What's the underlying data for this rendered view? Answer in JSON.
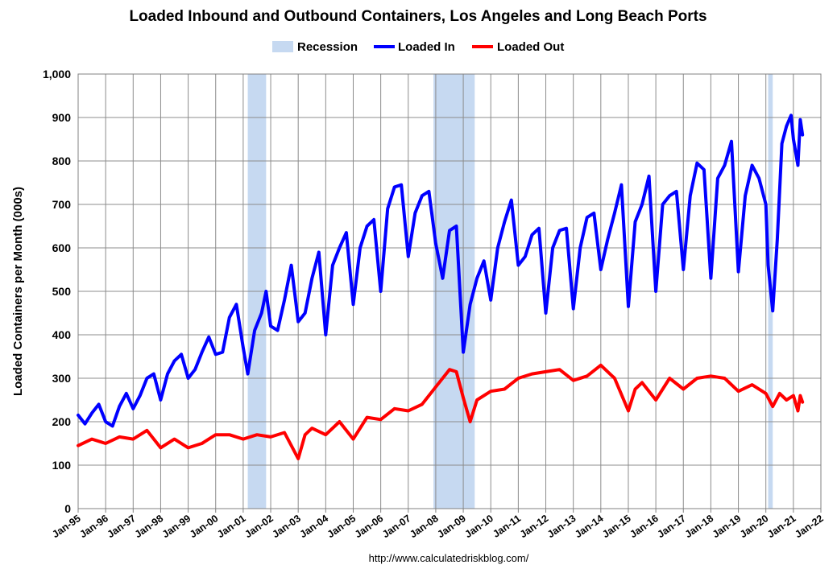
{
  "chart_data": {
    "type": "line",
    "title": "Loaded Inbound and Outbound Containers, Los Angeles and Long Beach Ports",
    "ylabel": "Loaded Containers per Month (000s)",
    "xlabel": "",
    "source": "http://www.calculatedriskblog.com/",
    "ylim": [
      0,
      1000
    ],
    "yticks": [
      0,
      100,
      200,
      300,
      400,
      500,
      600,
      700,
      800,
      900,
      1000
    ],
    "ytick_labels": [
      "0",
      "100",
      "200",
      "300",
      "400",
      "500",
      "600",
      "700",
      "800",
      "900",
      "1,000"
    ],
    "xlim": [
      "1995-01",
      "2022-01"
    ],
    "x_tick_labels": [
      "Jan-95",
      "Jan-96",
      "Jan-97",
      "Jan-98",
      "Jan-99",
      "Jan-00",
      "Jan-01",
      "Jan-02",
      "Jan-03",
      "Jan-04",
      "Jan-05",
      "Jan-06",
      "Jan-07",
      "Jan-08",
      "Jan-09",
      "Jan-10",
      "Jan-11",
      "Jan-12",
      "Jan-13",
      "Jan-14",
      "Jan-15",
      "Jan-16",
      "Jan-17",
      "Jan-18",
      "Jan-19",
      "Jan-20",
      "Jan-21",
      "Jan-22"
    ],
    "grid": true,
    "legend": {
      "position": "top",
      "entries": [
        {
          "label": "Recession",
          "color": "#c6d9f1"
        },
        {
          "label": "Loaded In",
          "color": "#0000ff"
        },
        {
          "label": "Loaded Out",
          "color": "#ff0000"
        }
      ]
    },
    "recessions": [
      {
        "start": "2001-03",
        "end": "2001-11"
      },
      {
        "start": "2007-12",
        "end": "2009-06"
      },
      {
        "start": "2020-02",
        "end": "2020-04"
      }
    ],
    "series": [
      {
        "name": "Loaded In",
        "color": "#0000ff",
        "points": [
          [
            "1995-01",
            215
          ],
          [
            "1995-04",
            195
          ],
          [
            "1995-07",
            220
          ],
          [
            "1995-10",
            240
          ],
          [
            "1996-01",
            200
          ],
          [
            "1996-04",
            190
          ],
          [
            "1996-07",
            235
          ],
          [
            "1996-10",
            265
          ],
          [
            "1997-01",
            230
          ],
          [
            "1997-04",
            260
          ],
          [
            "1997-07",
            300
          ],
          [
            "1997-10",
            310
          ],
          [
            "1998-01",
            250
          ],
          [
            "1998-04",
            310
          ],
          [
            "1998-07",
            340
          ],
          [
            "1998-10",
            355
          ],
          [
            "1999-01",
            300
          ],
          [
            "1999-04",
            320
          ],
          [
            "1999-07",
            360
          ],
          [
            "1999-10",
            395
          ],
          [
            "2000-01",
            355
          ],
          [
            "2000-04",
            360
          ],
          [
            "2000-07",
            440
          ],
          [
            "2000-10",
            470
          ],
          [
            "2001-01",
            370
          ],
          [
            "2001-03",
            310
          ],
          [
            "2001-06",
            410
          ],
          [
            "2001-09",
            450
          ],
          [
            "2001-11",
            500
          ],
          [
            "2002-01",
            420
          ],
          [
            "2002-04",
            410
          ],
          [
            "2002-07",
            480
          ],
          [
            "2002-10",
            560
          ],
          [
            "2003-01",
            430
          ],
          [
            "2003-04",
            450
          ],
          [
            "2003-07",
            530
          ],
          [
            "2003-10",
            590
          ],
          [
            "2004-01",
            400
          ],
          [
            "2004-04",
            560
          ],
          [
            "2004-07",
            600
          ],
          [
            "2004-10",
            635
          ],
          [
            "2005-01",
            470
          ],
          [
            "2005-04",
            600
          ],
          [
            "2005-07",
            650
          ],
          [
            "2005-10",
            665
          ],
          [
            "2006-01",
            500
          ],
          [
            "2006-04",
            690
          ],
          [
            "2006-07",
            740
          ],
          [
            "2006-10",
            745
          ],
          [
            "2007-01",
            580
          ],
          [
            "2007-04",
            680
          ],
          [
            "2007-07",
            720
          ],
          [
            "2007-10",
            730
          ],
          [
            "2008-01",
            610
          ],
          [
            "2008-04",
            530
          ],
          [
            "2008-07",
            640
          ],
          [
            "2008-10",
            650
          ],
          [
            "2009-01",
            360
          ],
          [
            "2009-04",
            470
          ],
          [
            "2009-07",
            530
          ],
          [
            "2009-10",
            570
          ],
          [
            "2010-01",
            480
          ],
          [
            "2010-04",
            600
          ],
          [
            "2010-07",
            660
          ],
          [
            "2010-10",
            710
          ],
          [
            "2011-01",
            560
          ],
          [
            "2011-04",
            580
          ],
          [
            "2011-07",
            630
          ],
          [
            "2011-10",
            645
          ],
          [
            "2012-01",
            450
          ],
          [
            "2012-04",
            600
          ],
          [
            "2012-07",
            640
          ],
          [
            "2012-10",
            645
          ],
          [
            "2013-01",
            460
          ],
          [
            "2013-04",
            600
          ],
          [
            "2013-07",
            670
          ],
          [
            "2013-10",
            680
          ],
          [
            "2014-01",
            550
          ],
          [
            "2014-04",
            620
          ],
          [
            "2014-07",
            680
          ],
          [
            "2014-10",
            745
          ],
          [
            "2015-01",
            465
          ],
          [
            "2015-04",
            660
          ],
          [
            "2015-07",
            700
          ],
          [
            "2015-10",
            765
          ],
          [
            "2016-01",
            500
          ],
          [
            "2016-04",
            700
          ],
          [
            "2016-07",
            720
          ],
          [
            "2016-10",
            730
          ],
          [
            "2017-01",
            550
          ],
          [
            "2017-04",
            720
          ],
          [
            "2017-07",
            795
          ],
          [
            "2017-10",
            780
          ],
          [
            "2018-01",
            530
          ],
          [
            "2018-04",
            760
          ],
          [
            "2018-07",
            790
          ],
          [
            "2018-10",
            845
          ],
          [
            "2019-01",
            545
          ],
          [
            "2019-04",
            720
          ],
          [
            "2019-07",
            790
          ],
          [
            "2019-10",
            760
          ],
          [
            "2020-01",
            700
          ],
          [
            "2020-02",
            560
          ],
          [
            "2020-04",
            455
          ],
          [
            "2020-06",
            620
          ],
          [
            "2020-08",
            840
          ],
          [
            "2020-10",
            880
          ],
          [
            "2020-12",
            905
          ],
          [
            "2021-01",
            850
          ],
          [
            "2021-03",
            790
          ],
          [
            "2021-04",
            895
          ],
          [
            "2021-05",
            860
          ]
        ]
      },
      {
        "name": "Loaded Out",
        "color": "#ff0000",
        "points": [
          [
            "1995-01",
            145
          ],
          [
            "1995-07",
            160
          ],
          [
            "1996-01",
            150
          ],
          [
            "1996-07",
            165
          ],
          [
            "1997-01",
            160
          ],
          [
            "1997-07",
            180
          ],
          [
            "1998-01",
            140
          ],
          [
            "1998-07",
            160
          ],
          [
            "1999-01",
            140
          ],
          [
            "1999-07",
            150
          ],
          [
            "2000-01",
            170
          ],
          [
            "2000-07",
            170
          ],
          [
            "2001-01",
            160
          ],
          [
            "2001-07",
            170
          ],
          [
            "2002-01",
            165
          ],
          [
            "2002-07",
            175
          ],
          [
            "2003-01",
            115
          ],
          [
            "2003-04",
            170
          ],
          [
            "2003-07",
            185
          ],
          [
            "2004-01",
            170
          ],
          [
            "2004-07",
            200
          ],
          [
            "2005-01",
            160
          ],
          [
            "2005-07",
            210
          ],
          [
            "2006-01",
            205
          ],
          [
            "2006-07",
            230
          ],
          [
            "2007-01",
            225
          ],
          [
            "2007-07",
            240
          ],
          [
            "2008-01",
            280
          ],
          [
            "2008-07",
            320
          ],
          [
            "2008-10",
            315
          ],
          [
            "2009-01",
            255
          ],
          [
            "2009-04",
            200
          ],
          [
            "2009-07",
            250
          ],
          [
            "2010-01",
            270
          ],
          [
            "2010-07",
            275
          ],
          [
            "2011-01",
            300
          ],
          [
            "2011-07",
            310
          ],
          [
            "2012-01",
            315
          ],
          [
            "2012-07",
            320
          ],
          [
            "2013-01",
            295
          ],
          [
            "2013-07",
            305
          ],
          [
            "2014-01",
            330
          ],
          [
            "2014-07",
            300
          ],
          [
            "2015-01",
            225
          ],
          [
            "2015-04",
            275
          ],
          [
            "2015-07",
            290
          ],
          [
            "2016-01",
            250
          ],
          [
            "2016-07",
            300
          ],
          [
            "2017-01",
            275
          ],
          [
            "2017-07",
            300
          ],
          [
            "2018-01",
            305
          ],
          [
            "2018-07",
            300
          ],
          [
            "2019-01",
            270
          ],
          [
            "2019-07",
            285
          ],
          [
            "2020-01",
            265
          ],
          [
            "2020-04",
            235
          ],
          [
            "2020-07",
            265
          ],
          [
            "2020-10",
            250
          ],
          [
            "2021-01",
            260
          ],
          [
            "2021-03",
            225
          ],
          [
            "2021-04",
            260
          ],
          [
            "2021-05",
            245
          ]
        ]
      }
    ]
  }
}
